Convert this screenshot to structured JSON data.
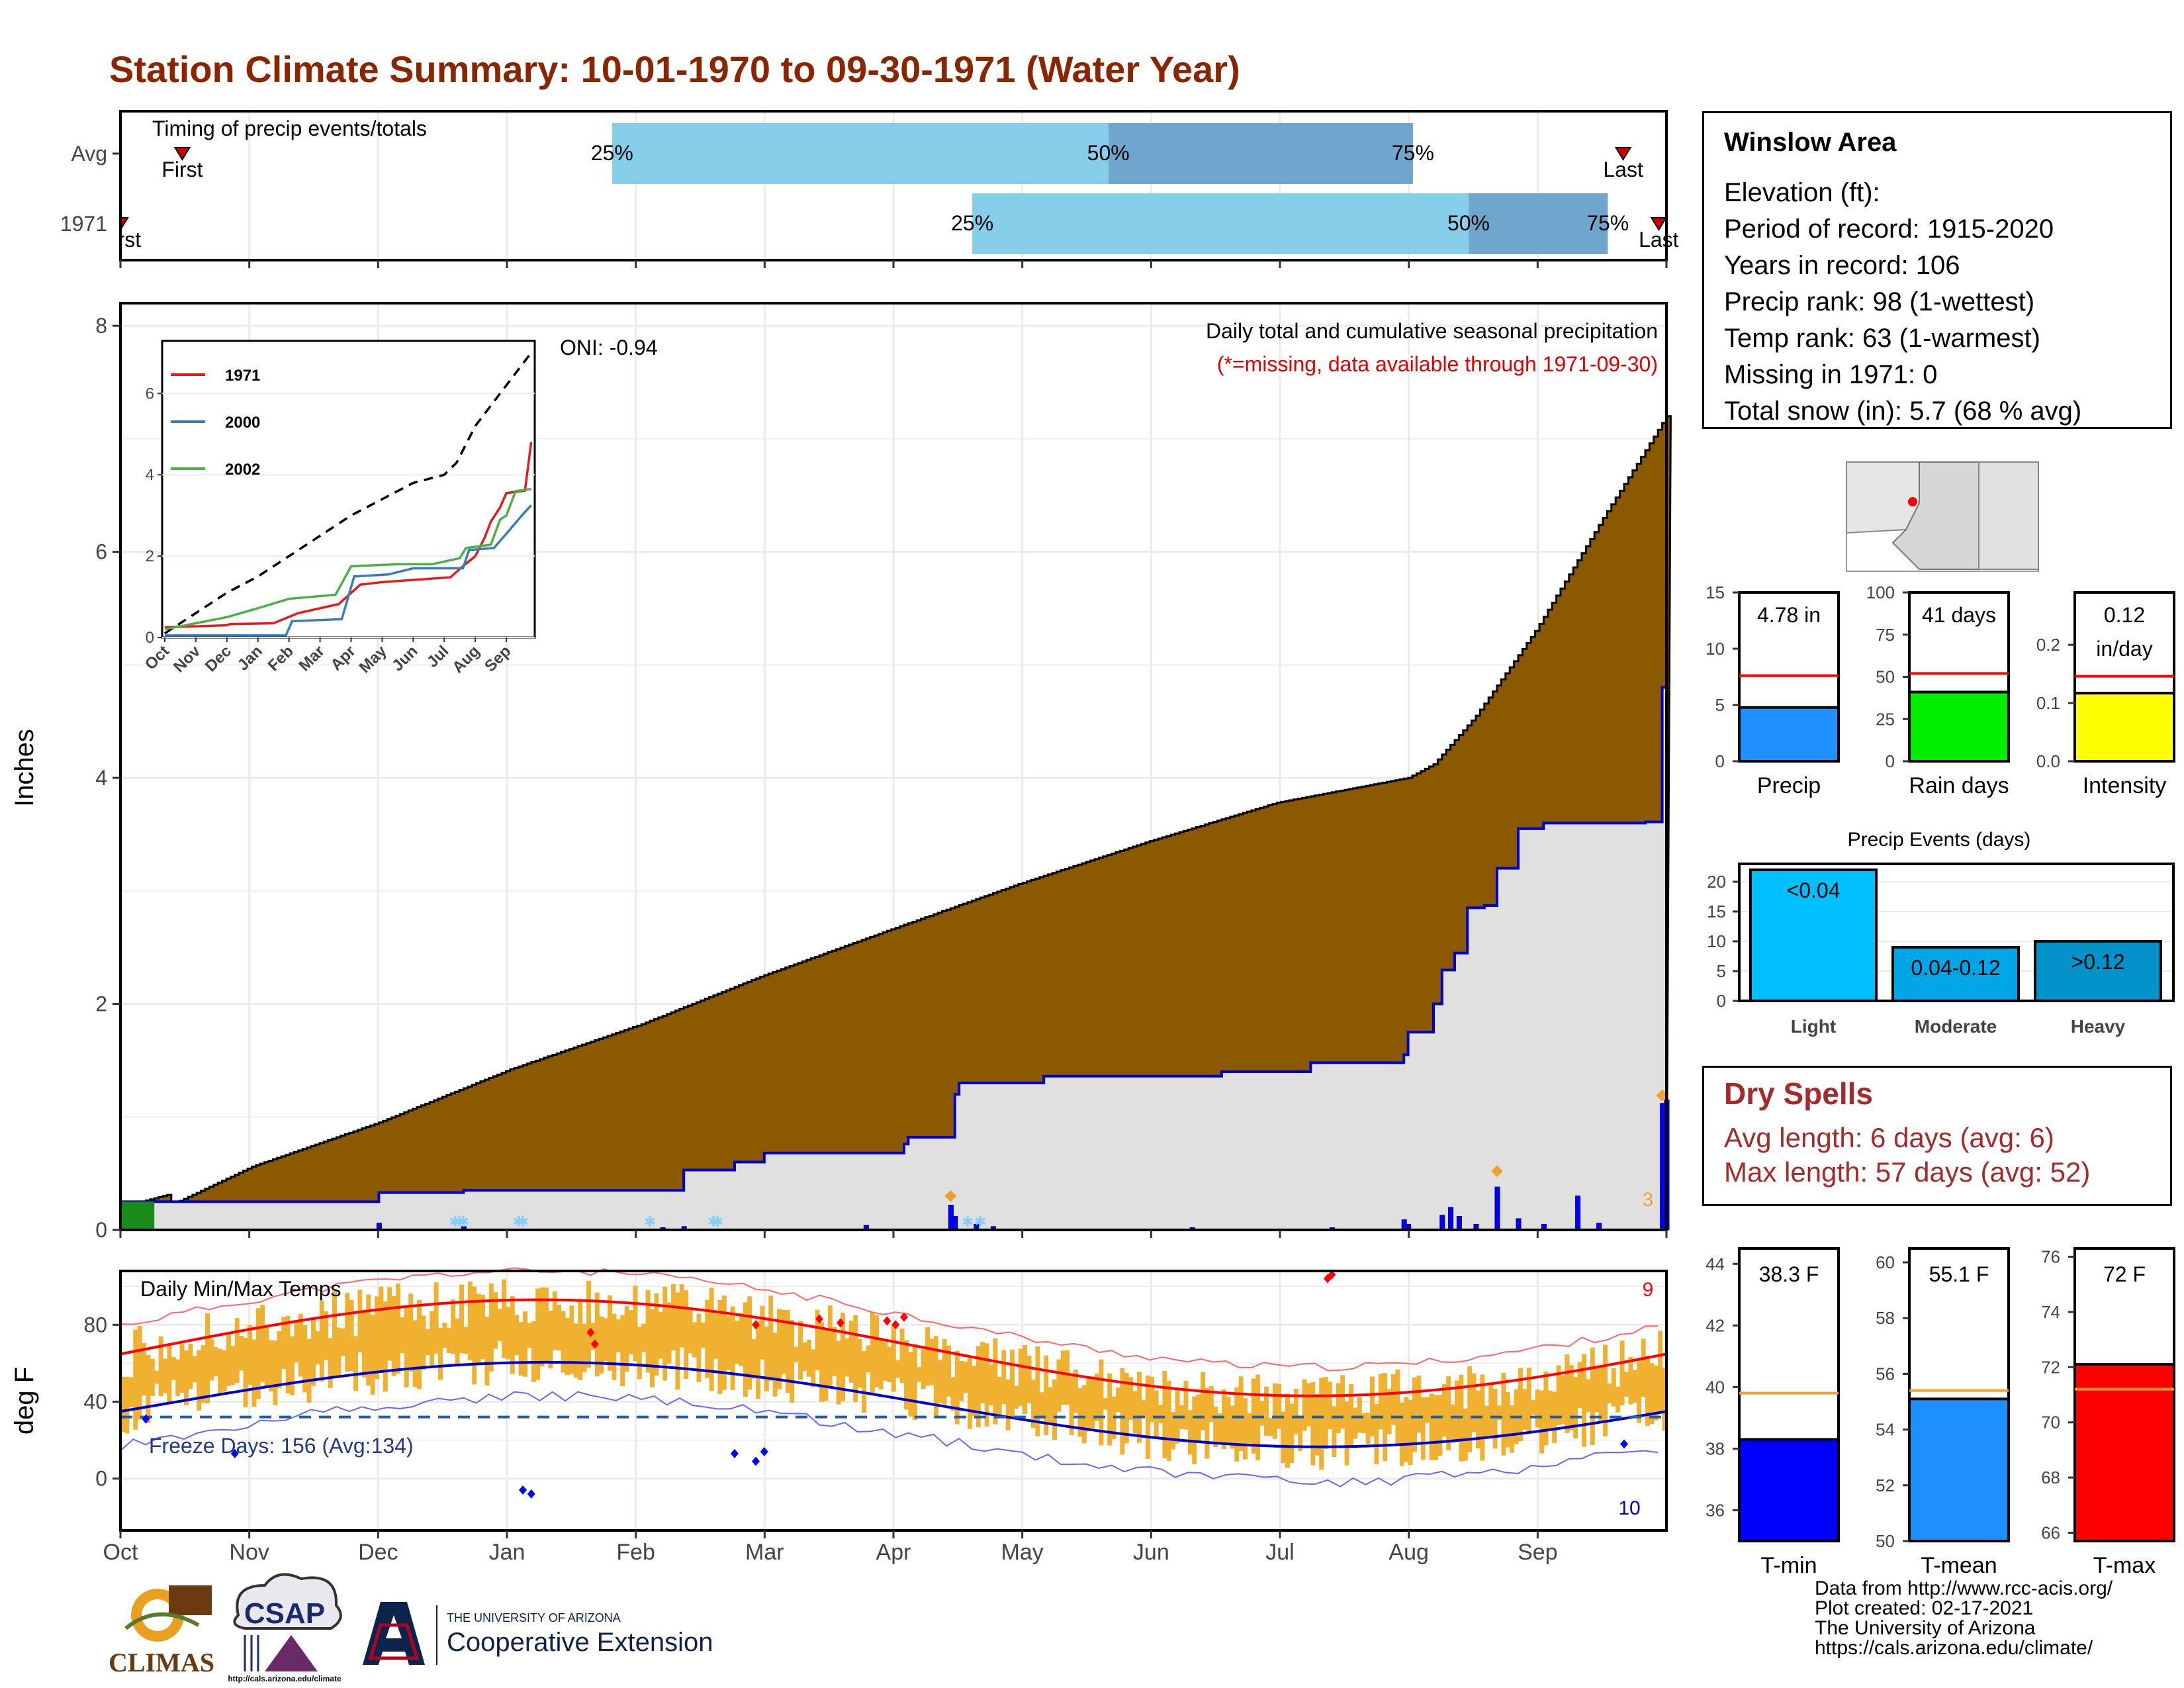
{
  "title": "Station Climate Summary: 10-01-1970 to 09-30-1971 (Water Year)",
  "colors": {
    "title": "#8b2500",
    "cumulative_avg_fill": "#8b5a00",
    "cumulative_1971_fill": "#e0e0e0",
    "cumulative_1971_line": "#0000cd",
    "timing_light": "#87ceeb",
    "timing_dark": "#6fa6cd",
    "temp_bars": "#f0b030",
    "avg_max": "#ff0000",
    "avg_min": "#0000cd",
    "freeze_line": "#1f5fa8",
    "dry_spells": "#a52a2a"
  },
  "timing": {
    "label": "Timing of precip events/totals",
    "rows": [
      {
        "name": "Avg",
        "first": 0.04,
        "last": 0.972,
        "p25": 0.318,
        "p50": 0.639,
        "p75": 0.836,
        "first_label": "First",
        "last_label": "Last",
        "p25_label": "25%",
        "p50_label": "50%",
        "p75_label": "75%"
      },
      {
        "name": "1971",
        "first": 0.0,
        "last": 0.995,
        "p25": 0.551,
        "p50": 0.872,
        "p75": 0.962,
        "first_label": "First",
        "last_label": "Last",
        "p25_label": "25%",
        "p50_label": "50%",
        "p75_label": "75%"
      }
    ]
  },
  "precip": {
    "ylabel": "Inches",
    "yticks": [
      "0",
      "2",
      "4",
      "6",
      "8"
    ],
    "ymax": 8.2,
    "subtitle": "Daily total and cumulative seasonal precipitation",
    "note": "(*=missing, data available through 1971-09-30)",
    "oni": "ONI: -0.94",
    "count_label": "3"
  },
  "inset": {
    "yticks": [
      "0",
      "2",
      "4",
      "6"
    ],
    "xticks": [
      "Oct",
      "Nov",
      "Dec",
      "Jan",
      "Feb",
      "Mar",
      "Apr",
      "May",
      "Jun",
      "Jul",
      "Aug",
      "Sep"
    ],
    "legend": [
      {
        "name": "1971",
        "color": "#e41a1c"
      },
      {
        "name": "2000",
        "color": "#377eb8"
      },
      {
        "name": "2002",
        "color": "#4daf4a"
      }
    ]
  },
  "temps": {
    "ylabel": "deg F",
    "yticks": [
      "0",
      "40",
      "80"
    ],
    "label": "Daily Min/Max Temps",
    "freeze": "Freeze Days: 156 (Avg:134)",
    "record_high_count": "9",
    "record_low_count": "10"
  },
  "months": [
    "Oct",
    "Nov",
    "Dec",
    "Jan",
    "Feb",
    "Mar",
    "Apr",
    "May",
    "Jun",
    "Jul",
    "Aug",
    "Sep"
  ],
  "station": {
    "name": "Winslow Area",
    "lines": [
      "Elevation (ft):",
      "Period of record: 1915-2020",
      "Years in record: 106",
      "Precip rank: 98 (1-wettest)",
      "Temp rank: 63 (1-warmest)",
      "Missing in 1971: 0",
      "Total snow (in): 5.7 (68 % avg)"
    ]
  },
  "summary_bars": [
    {
      "label": "Precip",
      "value_text": "4.78 in",
      "value": 4.78,
      "avg": 7.6,
      "max": 15,
      "ticks": [
        "0",
        "5",
        "10",
        "15"
      ],
      "color": "#1e90ff"
    },
    {
      "label": "Rain days",
      "value_text": "41 days",
      "value": 41,
      "avg": 52,
      "max": 100,
      "ticks": [
        "0",
        "25",
        "50",
        "75",
        "100"
      ],
      "color": "#00ee00"
    },
    {
      "label": "Intensity",
      "value_text": "0.12",
      "value_text2": "in/day",
      "value": 0.117,
      "avg": 0.146,
      "max": 0.29,
      "ticks": [
        "0.0",
        "0.1",
        "0.2"
      ],
      "color": "#ffff00"
    }
  ],
  "precip_events": {
    "title": "Precip Events (days)",
    "yticks": [
      "0",
      "5",
      "10",
      "15",
      "20"
    ],
    "bars": [
      {
        "label": "Light",
        "value_text": "<0.04",
        "value": 22,
        "color": "#00bfff"
      },
      {
        "label": "Moderate",
        "value_text": "0.04-0.12",
        "value": 9,
        "color": "#00a5e5"
      },
      {
        "label": "Heavy",
        "value_text": ">0.12",
        "value": 10,
        "color": "#0092c8"
      }
    ]
  },
  "dry_spells": {
    "title": "Dry Spells",
    "avg": "Avg length: 6 days (avg: 6)",
    "max": "Max length: 57 days (avg: 52)"
  },
  "temp_bars": [
    {
      "label": "T-min",
      "value_text": "38.3 F",
      "value": 38.3,
      "avg": 39.8,
      "min": 35,
      "max": 44.5,
      "ticks": [
        "36",
        "38",
        "40",
        "42",
        "44"
      ],
      "color": "#0000ff"
    },
    {
      "label": "T-mean",
      "value_text": "55.1 F",
      "value": 55.1,
      "avg": 55.4,
      "min": 50,
      "max": 60.5,
      "ticks": [
        "50",
        "52",
        "54",
        "56",
        "58",
        "60"
      ],
      "color": "#1e90ff"
    },
    {
      "label": "T-max",
      "value_text": "72 F",
      "value": 72.1,
      "avg": 71.2,
      "min": 65.7,
      "max": 76.3,
      "ticks": [
        "66",
        "68",
        "70",
        "72",
        "74",
        "76"
      ],
      "color": "#ff0000"
    }
  ],
  "logos": {
    "climas": "CLIMAS",
    "csap": "CSAP",
    "csap_url": "http://cals.arizona.edu/climate",
    "ua_line1": "THE UNIVERSITY OF ARIZONA",
    "ua_line2": "Cooperative Extension"
  },
  "credits": [
    "Data from http://www.rcc-acis.org/",
    "Plot created: 02-17-2021",
    "The University of Arizona",
    "https://cals.arizona.edu/climate/"
  ]
}
